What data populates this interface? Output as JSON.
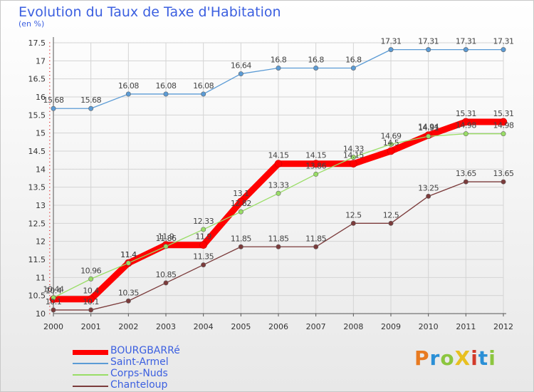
{
  "header": {
    "title": "Evolution du Taux de Taxe d'Habitation",
    "unit": "(en %)"
  },
  "logo": {
    "text": "ProXiti",
    "colors": [
      "#e87a20",
      "#2a8fd6",
      "#8cc63f",
      "#e8c020",
      "#d23a2a",
      "#2a8fd6",
      "#8cc63f"
    ]
  },
  "chart_data": {
    "type": "line",
    "title": "Evolution du Taux de Taxe d'Habitation",
    "ylabel": "(en %)",
    "xlabel": "",
    "x": [
      "2000",
      "2001",
      "2002",
      "2003",
      "2004",
      "2005",
      "2006",
      "2007",
      "2008",
      "2009",
      "2010",
      "2011",
      "2012"
    ],
    "ylim": [
      10,
      17.5
    ],
    "yticks": [
      "10",
      "10.5",
      "11",
      "11.5",
      "12",
      "12.5",
      "13",
      "13.5",
      "14",
      "14.5",
      "15",
      "15.5",
      "16",
      "16.5",
      "17",
      "17.5"
    ],
    "grid": true,
    "legend_position": "bottom-left",
    "series": [
      {
        "name": "BOURGBARRé",
        "color": "#ff0000",
        "values": [
          10.4,
          10.4,
          11.4,
          11.9,
          11.9,
          13.1,
          14.15,
          14.15,
          14.15,
          14.5,
          14.94,
          15.31,
          15.31
        ],
        "labels": [
          "10.4",
          "10.4",
          "11.4",
          "11.9",
          "11.9",
          "13.1",
          "14.15",
          "14.15",
          "14.15",
          "14.5",
          "14.94",
          "15.31",
          "15.31"
        ]
      },
      {
        "name": "Saint-Armel",
        "color": "#5b9bd5",
        "values": [
          15.68,
          15.68,
          16.08,
          16.08,
          16.08,
          16.64,
          16.8,
          16.8,
          16.8,
          17.31,
          17.31,
          17.31,
          17.31
        ],
        "labels": [
          "15.68",
          "15.68",
          "16.08",
          "16.08",
          "16.08",
          "16.64",
          "16.8",
          "16.8",
          "16.8",
          "17.31",
          "17.31",
          "17.31",
          "17.31"
        ]
      },
      {
        "name": "Corps-Nuds",
        "color": "#99dd66",
        "values": [
          10.44,
          10.96,
          11.4,
          11.86,
          12.33,
          12.82,
          13.33,
          13.86,
          14.33,
          14.69,
          14.91,
          14.98,
          14.98
        ],
        "labels": [
          "10.44",
          "10.96",
          "11.4",
          "11.86",
          "12.33",
          "12.82",
          "13.33",
          "13.86",
          "14.33",
          "14.69",
          "14.91",
          "14.98",
          "14.98"
        ]
      },
      {
        "name": "Chanteloup",
        "color": "#7b3b3b",
        "values": [
          10.1,
          10.1,
          10.35,
          10.85,
          11.35,
          11.85,
          11.85,
          11.85,
          12.5,
          12.5,
          13.25,
          13.65,
          13.65
        ],
        "labels": [
          "10.1",
          "10.1",
          "10.35",
          "10.85",
          "11.35",
          "11.85",
          "11.85",
          "11.85",
          "12.5",
          "12.5",
          "13.25",
          "13.65",
          "13.65"
        ]
      }
    ]
  }
}
